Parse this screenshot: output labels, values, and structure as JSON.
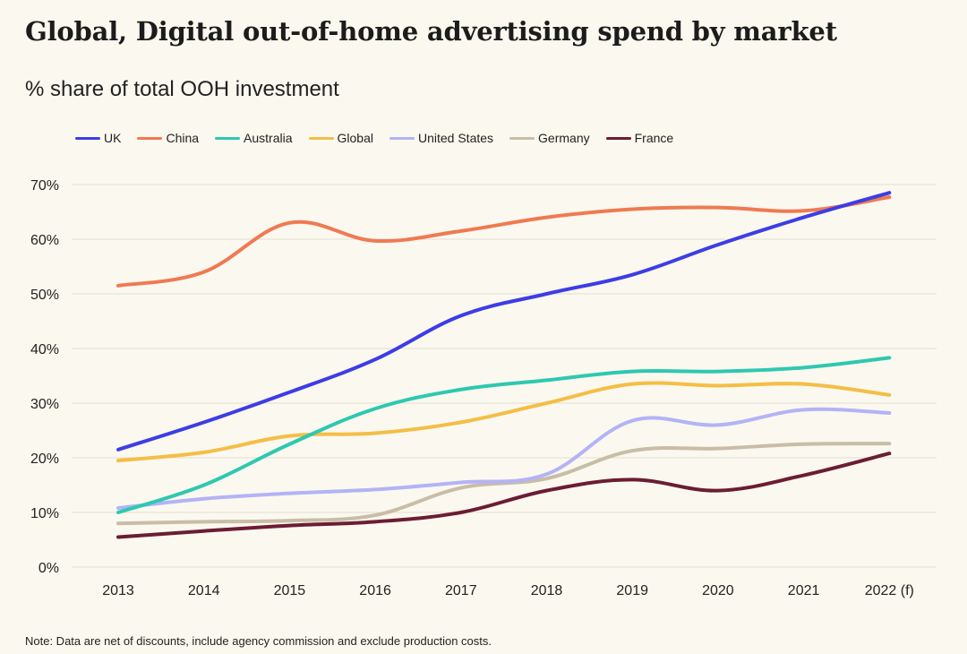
{
  "chart_data": {
    "type": "line",
    "title": "Global, Digital out-of-home advertising spend by market",
    "subtitle": "% share of total OOH investment",
    "note": "Note: Data are net of discounts, include agency commission and exclude production costs.",
    "categories": [
      "2013",
      "2014",
      "2015",
      "2016",
      "2017",
      "2018",
      "2019",
      "2020",
      "2021",
      "2022 (f)"
    ],
    "y_ticks": [
      "0%",
      "10%",
      "20%",
      "30%",
      "40%",
      "50%",
      "60%",
      "70%"
    ],
    "ylim": [
      0,
      70
    ],
    "grid": true,
    "legend_position": "top-left",
    "series": [
      {
        "name": "UK",
        "color": "#3d3de6",
        "values": [
          21.5,
          26.5,
          32,
          38,
          46,
          50,
          53.5,
          59,
          64,
          68.5
        ]
      },
      {
        "name": "China",
        "color": "#ef7a52",
        "values": [
          51.5,
          54,
          63,
          59.7,
          61.5,
          64,
          65.5,
          65.8,
          65.2,
          67.7
        ]
      },
      {
        "name": "Australia",
        "color": "#2ec8b0",
        "values": [
          10,
          15,
          22.5,
          29,
          32.5,
          34.2,
          35.8,
          35.8,
          36.5,
          38.3
        ]
      },
      {
        "name": "Global",
        "color": "#f4be46",
        "values": [
          19.5,
          21,
          24,
          24.5,
          26.5,
          30,
          33.5,
          33.2,
          33.5,
          31.5
        ]
      },
      {
        "name": "United States",
        "color": "#b3b3f5",
        "values": [
          10.8,
          12.5,
          13.5,
          14.2,
          15.5,
          17,
          26.8,
          26,
          28.8,
          28.2
        ]
      },
      {
        "name": "Germany",
        "color": "#c8bda6",
        "values": [
          8,
          8.3,
          8.5,
          9.5,
          14.5,
          16.2,
          21.3,
          21.7,
          22.5,
          22.6
        ]
      },
      {
        "name": "France",
        "color": "#6b1d33",
        "values": [
          5.5,
          6.6,
          7.6,
          8.3,
          10,
          14,
          16,
          14,
          16.8,
          20.8
        ]
      }
    ]
  }
}
